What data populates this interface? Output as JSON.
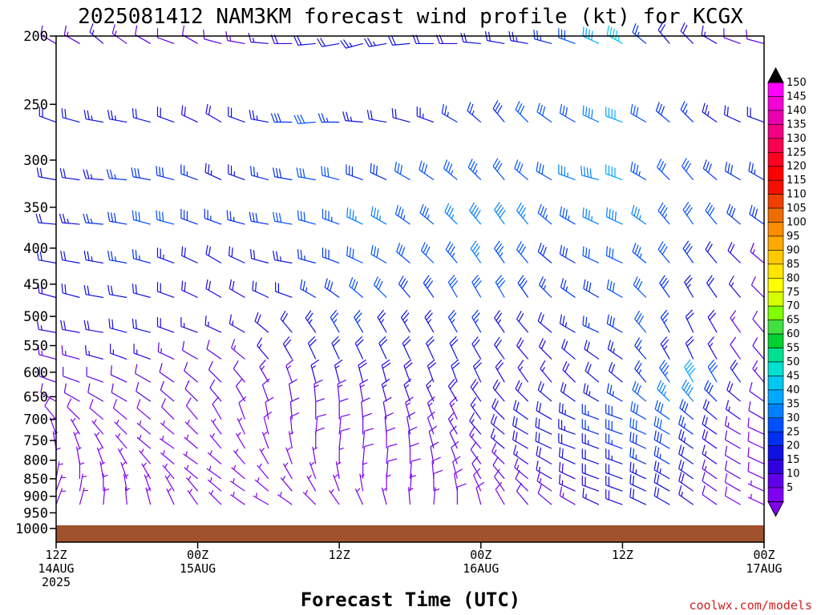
{
  "chart_data": {
    "type": "wind-barb-profile",
    "title": "2025081412 NAM3KM forecast wind profile (kt) for KCGX",
    "xlabel": "Forecast Time (UTC)",
    "credit": "coolwx.com/models",
    "y_axis": {
      "scale": "log-pressure",
      "ylim": [
        1000,
        200
      ],
      "ticks": [
        "200",
        "250",
        "300",
        "350",
        "400",
        "450",
        "500",
        "550",
        "600",
        "650",
        "700",
        "750",
        "800",
        "850",
        "900",
        "950",
        "1000"
      ]
    },
    "x_axis": {
      "range_hours": [
        0,
        60
      ],
      "ticks": [
        {
          "hour": 0,
          "line1": "12Z",
          "line2": "14AUG",
          "line3": "2025"
        },
        {
          "hour": 12,
          "line1": "00Z",
          "line2": "15AUG",
          "line3": ""
        },
        {
          "hour": 24,
          "line1": "12Z",
          "line2": "",
          "line3": ""
        },
        {
          "hour": 36,
          "line1": "00Z",
          "line2": "16AUG",
          "line3": ""
        },
        {
          "hour": 48,
          "line1": "12Z",
          "line2": "",
          "line3": ""
        },
        {
          "hour": 60,
          "line1": "00Z",
          "line2": "17AUG",
          "line3": ""
        }
      ]
    },
    "barb_levels_hpa": [
      205,
      265,
      320,
      370,
      420,
      470,
      527,
      575,
      620,
      660,
      700,
      735,
      770,
      810,
      850,
      885,
      925
    ],
    "hour_step": 2,
    "note_surface": "brown ground fill below ~988 hPa",
    "colorbar": {
      "labels": [
        "150",
        "145",
        "140",
        "135",
        "130",
        "125",
        "120",
        "115",
        "110",
        "105",
        "100",
        "95",
        "90",
        "85",
        "80",
        "75",
        "70",
        "65",
        "60",
        "55",
        "50",
        "45",
        "40",
        "35",
        "30",
        "25",
        "20",
        "15",
        "10",
        "5"
      ],
      "colors": [
        "#ff00ff",
        "#f400d8",
        "#e800b0",
        "#f00080",
        "#f80050",
        "#ff0020",
        "#ff0000",
        "#f41000",
        "#ef4000",
        "#ef6c00",
        "#ff8c00",
        "#ffaa00",
        "#ffc800",
        "#ffe600",
        "#ffff00",
        "#d6ff00",
        "#80ff00",
        "#40e040",
        "#00d030",
        "#00e090",
        "#00e0d0",
        "#00c8f0",
        "#00a8ff",
        "#0080ff",
        "#0050ff",
        "#0030f0",
        "#1010e0",
        "#3000e0",
        "#6000e8",
        "#8000f0"
      ]
    },
    "wind_color_scale_kt": [
      [
        5,
        "#8000f0"
      ],
      [
        10,
        "#6000e8"
      ],
      [
        15,
        "#3000e0"
      ],
      [
        20,
        "#1010e0"
      ],
      [
        25,
        "#0030f0"
      ],
      [
        30,
        "#0050ff"
      ],
      [
        35,
        "#0080ff"
      ],
      [
        40,
        "#00a8ff"
      ],
      [
        45,
        "#00c8f0"
      ],
      [
        50,
        "#00e0d0"
      ]
    ],
    "winds": [
      {
        "p": 205,
        "dir": [
          300,
          300,
          310,
          305,
          300,
          290,
          300,
          285,
          280,
          275,
          270,
          265,
          260,
          255,
          260,
          265,
          270,
          270,
          275,
          280,
          280,
          285,
          290,
          295,
          300,
          310,
          320,
          315,
          300,
          290,
          285
        ],
        "spd": [
          12,
          14,
          16,
          14,
          12,
          10,
          10,
          12,
          14,
          16,
          18,
          20,
          22,
          24,
          24,
          22,
          20,
          18,
          20,
          22,
          24,
          26,
          30,
          40,
          45,
          25,
          20,
          18,
          15,
          12,
          10
        ]
      },
      {
        "p": 265,
        "dir": [
          290,
          285,
          280,
          280,
          285,
          290,
          295,
          300,
          290,
          280,
          270,
          265,
          270,
          275,
          280,
          285,
          290,
          300,
          310,
          320,
          315,
          305,
          300,
          295,
          290,
          300,
          310,
          315,
          305,
          295,
          290
        ],
        "spd": [
          20,
          22,
          24,
          24,
          22,
          20,
          18,
          18,
          20,
          24,
          28,
          30,
          26,
          24,
          22,
          22,
          24,
          26,
          26,
          28,
          30,
          30,
          32,
          38,
          40,
          30,
          28,
          26,
          24,
          22,
          20
        ]
      },
      {
        "p": 320,
        "dir": [
          280,
          278,
          275,
          275,
          280,
          285,
          290,
          295,
          290,
          285,
          280,
          280,
          285,
          290,
          295,
          300,
          305,
          310,
          315,
          320,
          310,
          300,
          290,
          285,
          290,
          300,
          315,
          320,
          310,
          300,
          300
        ],
        "spd": [
          20,
          22,
          24,
          26,
          28,
          28,
          26,
          24,
          24,
          26,
          28,
          30,
          30,
          28,
          28,
          30,
          32,
          34,
          34,
          32,
          30,
          32,
          36,
          38,
          40,
          34,
          30,
          30,
          28,
          28,
          26
        ]
      },
      {
        "p": 370,
        "dir": [
          275,
          275,
          275,
          280,
          285,
          285,
          290,
          290,
          285,
          280,
          280,
          285,
          290,
          295,
          300,
          305,
          310,
          315,
          320,
          325,
          320,
          310,
          300,
          295,
          295,
          305,
          320,
          325,
          320,
          310,
          305
        ],
        "spd": [
          22,
          24,
          26,
          28,
          30,
          30,
          28,
          26,
          26,
          28,
          30,
          32,
          34,
          36,
          36,
          34,
          34,
          36,
          38,
          38,
          36,
          34,
          34,
          36,
          38,
          36,
          34,
          32,
          30,
          28,
          28
        ]
      },
      {
        "p": 420,
        "dir": [
          280,
          280,
          280,
          280,
          285,
          290,
          295,
          300,
          295,
          285,
          280,
          285,
          290,
          295,
          300,
          310,
          315,
          320,
          325,
          325,
          320,
          310,
          300,
          295,
          295,
          310,
          320,
          325,
          320,
          315,
          310
        ],
        "spd": [
          20,
          22,
          24,
          26,
          26,
          24,
          22,
          20,
          20,
          22,
          24,
          26,
          28,
          30,
          32,
          32,
          30,
          34,
          36,
          34,
          30,
          28,
          28,
          30,
          30,
          34,
          32,
          28,
          22,
          18,
          14
        ]
      },
      {
        "p": 470,
        "dir": [
          285,
          285,
          280,
          280,
          285,
          290,
          295,
          300,
          300,
          295,
          290,
          300,
          305,
          310,
          315,
          320,
          325,
          330,
          330,
          330,
          325,
          315,
          305,
          300,
          300,
          315,
          325,
          330,
          325,
          320,
          315
        ],
        "spd": [
          18,
          20,
          22,
          22,
          22,
          20,
          18,
          18,
          18,
          20,
          22,
          26,
          28,
          30,
          30,
          28,
          28,
          30,
          32,
          30,
          28,
          26,
          26,
          28,
          30,
          32,
          28,
          24,
          20,
          16,
          12
        ]
      },
      {
        "p": 527,
        "dir": [
          280,
          280,
          280,
          285,
          285,
          290,
          290,
          295,
          300,
          310,
          320,
          325,
          330,
          330,
          330,
          330,
          330,
          330,
          330,
          325,
          320,
          310,
          300,
          295,
          300,
          320,
          330,
          335,
          330,
          325,
          320
        ],
        "spd": [
          16,
          18,
          18,
          20,
          20,
          18,
          16,
          16,
          16,
          18,
          22,
          24,
          26,
          26,
          24,
          24,
          24,
          26,
          26,
          24,
          22,
          22,
          24,
          26,
          28,
          30,
          26,
          22,
          18,
          14,
          12
        ]
      },
      {
        "p": 575,
        "dir": [
          285,
          285,
          285,
          290,
          290,
          295,
          300,
          305,
          310,
          320,
          330,
          335,
          335,
          335,
          335,
          335,
          335,
          335,
          330,
          325,
          320,
          315,
          310,
          305,
          305,
          320,
          330,
          335,
          330,
          325,
          320
        ],
        "spd": [
          14,
          14,
          16,
          16,
          16,
          14,
          12,
          12,
          14,
          16,
          18,
          20,
          20,
          20,
          20,
          20,
          20,
          22,
          22,
          20,
          18,
          18,
          20,
          22,
          24,
          26,
          24,
          20,
          16,
          12,
          10
        ]
      },
      {
        "p": 620,
        "dir": [
          290,
          290,
          290,
          295,
          300,
          305,
          310,
          315,
          320,
          330,
          340,
          345,
          345,
          345,
          345,
          340,
          340,
          340,
          335,
          330,
          325,
          320,
          315,
          310,
          310,
          320,
          325,
          330,
          330,
          325,
          320
        ],
        "spd": [
          12,
          12,
          12,
          12,
          12,
          12,
          10,
          10,
          12,
          14,
          14,
          16,
          16,
          18,
          18,
          18,
          18,
          20,
          20,
          18,
          16,
          16,
          18,
          20,
          22,
          26,
          34,
          42,
          30,
          20,
          14
        ]
      },
      {
        "p": 660,
        "dir": [
          300,
          300,
          300,
          300,
          305,
          310,
          315,
          320,
          330,
          340,
          350,
          355,
          355,
          350,
          345,
          340,
          335,
          330,
          325,
          320,
          315,
          310,
          305,
          300,
          300,
          310,
          315,
          320,
          315,
          310,
          305
        ],
        "spd": [
          10,
          10,
          10,
          10,
          10,
          10,
          10,
          10,
          10,
          12,
          12,
          14,
          14,
          14,
          16,
          16,
          16,
          18,
          18,
          18,
          18,
          20,
          22,
          24,
          26,
          30,
          36,
          38,
          28,
          18,
          12
        ]
      },
      {
        "p": 700,
        "dir": [
          320,
          315,
          310,
          310,
          310,
          315,
          320,
          330,
          340,
          350,
          355,
          0,
          0,
          355,
          350,
          345,
          340,
          335,
          325,
          315,
          305,
          300,
          295,
          290,
          290,
          300,
          305,
          310,
          310,
          305,
          300
        ],
        "spd": [
          8,
          8,
          8,
          8,
          8,
          8,
          8,
          8,
          8,
          8,
          10,
          10,
          10,
          12,
          12,
          14,
          14,
          14,
          16,
          18,
          20,
          22,
          24,
          26,
          28,
          32,
          30,
          28,
          22,
          16,
          10
        ]
      },
      {
        "p": 735,
        "dir": [
          340,
          330,
          320,
          315,
          310,
          310,
          315,
          325,
          335,
          345,
          355,
          5,
          5,
          0,
          355,
          350,
          340,
          330,
          320,
          310,
          300,
          295,
          290,
          290,
          290,
          295,
          300,
          305,
          305,
          300,
          295
        ],
        "spd": [
          6,
          6,
          6,
          6,
          6,
          6,
          6,
          6,
          6,
          8,
          8,
          8,
          8,
          10,
          10,
          12,
          12,
          14,
          16,
          18,
          20,
          22,
          24,
          26,
          28,
          30,
          30,
          26,
          20,
          14,
          8
        ]
      },
      {
        "p": 770,
        "dir": [
          350,
          340,
          330,
          320,
          310,
          305,
          310,
          320,
          330,
          340,
          350,
          0,
          5,
          5,
          0,
          355,
          345,
          335,
          320,
          310,
          300,
          295,
          290,
          290,
          290,
          295,
          300,
          305,
          305,
          300,
          295
        ],
        "spd": [
          6,
          6,
          6,
          6,
          6,
          6,
          6,
          6,
          6,
          6,
          6,
          8,
          8,
          8,
          8,
          10,
          10,
          12,
          14,
          16,
          18,
          20,
          22,
          24,
          26,
          28,
          28,
          24,
          18,
          12,
          8
        ]
      },
      {
        "p": 810,
        "dir": [
          0,
          350,
          340,
          330,
          320,
          310,
          305,
          310,
          320,
          330,
          340,
          350,
          0,
          5,
          5,
          0,
          350,
          340,
          325,
          315,
          305,
          300,
          295,
          290,
          290,
          295,
          300,
          305,
          305,
          300,
          295
        ],
        "spd": [
          6,
          6,
          6,
          6,
          6,
          6,
          6,
          6,
          6,
          6,
          6,
          6,
          6,
          8,
          8,
          8,
          10,
          10,
          12,
          14,
          16,
          18,
          20,
          22,
          24,
          26,
          26,
          22,
          16,
          10,
          8
        ]
      },
      {
        "p": 850,
        "dir": [
          10,
          0,
          350,
          340,
          330,
          320,
          310,
          305,
          310,
          320,
          330,
          340,
          350,
          0,
          5,
          5,
          355,
          345,
          330,
          320,
          310,
          300,
          295,
          290,
          290,
          295,
          300,
          305,
          305,
          300,
          295
        ],
        "spd": [
          6,
          6,
          6,
          6,
          6,
          6,
          6,
          6,
          6,
          6,
          6,
          6,
          6,
          6,
          8,
          8,
          8,
          8,
          10,
          12,
          14,
          16,
          18,
          20,
          22,
          24,
          24,
          20,
          14,
          10,
          8
        ]
      },
      {
        "p": 885,
        "dir": [
          20,
          10,
          0,
          350,
          340,
          330,
          320,
          310,
          305,
          310,
          320,
          330,
          340,
          350,
          0,
          5,
          0,
          350,
          335,
          325,
          315,
          305,
          295,
          290,
          290,
          295,
          300,
          305,
          305,
          300,
          295
        ],
        "spd": [
          6,
          6,
          6,
          6,
          6,
          6,
          6,
          6,
          6,
          6,
          6,
          6,
          6,
          6,
          6,
          6,
          8,
          8,
          8,
          10,
          12,
          14,
          16,
          18,
          20,
          22,
          22,
          18,
          12,
          8,
          6
        ]
      },
      {
        "p": 925,
        "dir": [
          20,
          15,
          5,
          355,
          345,
          335,
          325,
          315,
          305,
          300,
          305,
          315,
          325,
          335,
          345,
          355,
          5,
          0,
          345,
          330,
          320,
          310,
          300,
          295,
          290,
          295,
          300,
          305,
          305,
          300,
          295
        ],
        "spd": [
          6,
          6,
          6,
          6,
          6,
          6,
          6,
          6,
          6,
          6,
          6,
          6,
          6,
          6,
          6,
          6,
          6,
          8,
          8,
          8,
          10,
          12,
          14,
          16,
          18,
          20,
          20,
          16,
          10,
          8,
          6
        ]
      }
    ]
  }
}
